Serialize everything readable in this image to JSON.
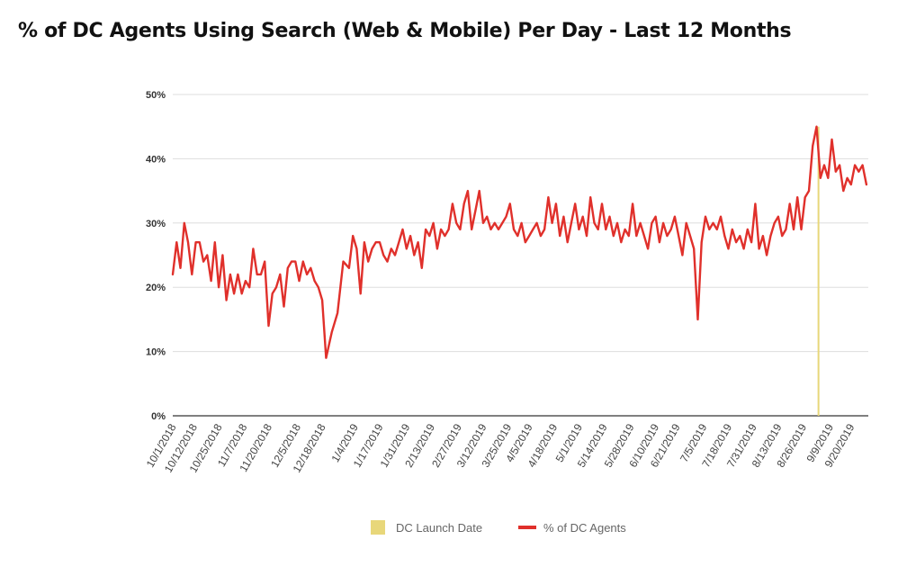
{
  "title": "% of DC Agents Using Search (Web & Mobile) Per Day - Last 12 Months",
  "colors": {
    "series": "#e0302b",
    "launch": "#e8d77a",
    "grid": "#dddddd",
    "axis": "#333333"
  },
  "chart_data": {
    "type": "line",
    "title": "% of DC Agents Using Search (Web & Mobile) Per Day - Last 12 Months",
    "xlabel": "",
    "ylabel": "",
    "x_start": "2018-10-01",
    "x_end": "2019-09-29",
    "ylim": [
      0,
      50
    ],
    "yticks": [
      0,
      10,
      20,
      30,
      40,
      50
    ],
    "ytick_labels": [
      "0%",
      "10%",
      "20%",
      "30%",
      "40%",
      "50%"
    ],
    "xtick_dates": [
      "2018-10-01",
      "2018-10-12",
      "2018-10-25",
      "2018-11-07",
      "2018-11-20",
      "2018-12-05",
      "2018-12-18",
      "2019-01-04",
      "2019-01-17",
      "2019-01-31",
      "2019-02-13",
      "2019-02-27",
      "2019-03-12",
      "2019-03-25",
      "2019-04-05",
      "2019-04-18",
      "2019-05-01",
      "2019-05-14",
      "2019-05-28",
      "2019-06-10",
      "2019-06-21",
      "2019-07-05",
      "2019-07-18",
      "2019-07-31",
      "2019-08-13",
      "2019-08-26",
      "2019-09-09",
      "2019-09-20"
    ],
    "xtick_labels": [
      "10/1/2018",
      "10/12/2018",
      "10/25/2018",
      "11/7/2018",
      "11/20/2018",
      "12/5/2018",
      "12/18/2018",
      "1/4/2019",
      "1/17/2019",
      "1/31/2019",
      "2/13/2019",
      "2/27/2019",
      "3/12/2019",
      "3/25/2019",
      "4/5/2019",
      "4/18/2019",
      "5/1/2019",
      "5/14/2019",
      "5/28/2019",
      "6/10/2019",
      "6/21/2019",
      "7/5/2019",
      "7/18/2019",
      "7/31/2019",
      "8/13/2019",
      "8/26/2019",
      "9/9/2019",
      "9/20/2019"
    ],
    "grid": true,
    "legend_position": "bottom",
    "legend": [
      "DC Launch Date",
      "% of DC Agents"
    ],
    "launch_date": "2019-09-03",
    "series": [
      {
        "name": "% of DC Agents",
        "points": [
          [
            "2018-10-01",
            22
          ],
          [
            "2018-10-03",
            27
          ],
          [
            "2018-10-05",
            23
          ],
          [
            "2018-10-07",
            30
          ],
          [
            "2018-10-09",
            27
          ],
          [
            "2018-10-11",
            22
          ],
          [
            "2018-10-13",
            27
          ],
          [
            "2018-10-15",
            27
          ],
          [
            "2018-10-17",
            24
          ],
          [
            "2018-10-19",
            25
          ],
          [
            "2018-10-21",
            21
          ],
          [
            "2018-10-23",
            27
          ],
          [
            "2018-10-25",
            20
          ],
          [
            "2018-10-27",
            25
          ],
          [
            "2018-10-29",
            18
          ],
          [
            "2018-10-31",
            22
          ],
          [
            "2018-11-02",
            19
          ],
          [
            "2018-11-04",
            22
          ],
          [
            "2018-11-06",
            19
          ],
          [
            "2018-11-08",
            21
          ],
          [
            "2018-11-10",
            20
          ],
          [
            "2018-11-12",
            26
          ],
          [
            "2018-11-14",
            22
          ],
          [
            "2018-11-16",
            22
          ],
          [
            "2018-11-18",
            24
          ],
          [
            "2018-11-20",
            14
          ],
          [
            "2018-11-22",
            19
          ],
          [
            "2018-11-24",
            20
          ],
          [
            "2018-11-26",
            22
          ],
          [
            "2018-11-28",
            17
          ],
          [
            "2018-11-30",
            23
          ],
          [
            "2018-12-02",
            24
          ],
          [
            "2018-12-04",
            24
          ],
          [
            "2018-12-06",
            21
          ],
          [
            "2018-12-08",
            24
          ],
          [
            "2018-12-10",
            22
          ],
          [
            "2018-12-12",
            23
          ],
          [
            "2018-12-14",
            21
          ],
          [
            "2018-12-16",
            20
          ],
          [
            "2018-12-18",
            18
          ],
          [
            "2018-12-20",
            9
          ],
          [
            "2018-12-23",
            13
          ],
          [
            "2018-12-26",
            16
          ],
          [
            "2018-12-29",
            24
          ],
          [
            "2019-01-01",
            23
          ],
          [
            "2019-01-03",
            28
          ],
          [
            "2019-01-05",
            26
          ],
          [
            "2019-01-07",
            19
          ],
          [
            "2019-01-09",
            27
          ],
          [
            "2019-01-11",
            24
          ],
          [
            "2019-01-13",
            26
          ],
          [
            "2019-01-15",
            27
          ],
          [
            "2019-01-17",
            27
          ],
          [
            "2019-01-19",
            25
          ],
          [
            "2019-01-21",
            24
          ],
          [
            "2019-01-23",
            26
          ],
          [
            "2019-01-25",
            25
          ],
          [
            "2019-01-27",
            27
          ],
          [
            "2019-01-29",
            29
          ],
          [
            "2019-01-31",
            26
          ],
          [
            "2019-02-02",
            28
          ],
          [
            "2019-02-04",
            25
          ],
          [
            "2019-02-06",
            27
          ],
          [
            "2019-02-08",
            23
          ],
          [
            "2019-02-10",
            29
          ],
          [
            "2019-02-12",
            28
          ],
          [
            "2019-02-14",
            30
          ],
          [
            "2019-02-16",
            26
          ],
          [
            "2019-02-18",
            29
          ],
          [
            "2019-02-20",
            28
          ],
          [
            "2019-02-22",
            29
          ],
          [
            "2019-02-24",
            33
          ],
          [
            "2019-02-26",
            30
          ],
          [
            "2019-02-28",
            29
          ],
          [
            "2019-03-02",
            33
          ],
          [
            "2019-03-04",
            35
          ],
          [
            "2019-03-06",
            29
          ],
          [
            "2019-03-08",
            32
          ],
          [
            "2019-03-10",
            35
          ],
          [
            "2019-03-12",
            30
          ],
          [
            "2019-03-14",
            31
          ],
          [
            "2019-03-16",
            29
          ],
          [
            "2019-03-18",
            30
          ],
          [
            "2019-03-20",
            29
          ],
          [
            "2019-03-22",
            30
          ],
          [
            "2019-03-24",
            31
          ],
          [
            "2019-03-26",
            33
          ],
          [
            "2019-03-28",
            29
          ],
          [
            "2019-03-30",
            28
          ],
          [
            "2019-04-01",
            30
          ],
          [
            "2019-04-03",
            27
          ],
          [
            "2019-04-05",
            28
          ],
          [
            "2019-04-07",
            29
          ],
          [
            "2019-04-09",
            30
          ],
          [
            "2019-04-11",
            28
          ],
          [
            "2019-04-13",
            29
          ],
          [
            "2019-04-15",
            34
          ],
          [
            "2019-04-17",
            30
          ],
          [
            "2019-04-19",
            33
          ],
          [
            "2019-04-21",
            28
          ],
          [
            "2019-04-23",
            31
          ],
          [
            "2019-04-25",
            27
          ],
          [
            "2019-04-27",
            30
          ],
          [
            "2019-04-29",
            33
          ],
          [
            "2019-05-01",
            29
          ],
          [
            "2019-05-03",
            31
          ],
          [
            "2019-05-05",
            28
          ],
          [
            "2019-05-07",
            34
          ],
          [
            "2019-05-09",
            30
          ],
          [
            "2019-05-11",
            29
          ],
          [
            "2019-05-13",
            33
          ],
          [
            "2019-05-15",
            29
          ],
          [
            "2019-05-17",
            31
          ],
          [
            "2019-05-19",
            28
          ],
          [
            "2019-05-21",
            30
          ],
          [
            "2019-05-23",
            27
          ],
          [
            "2019-05-25",
            29
          ],
          [
            "2019-05-27",
            28
          ],
          [
            "2019-05-29",
            33
          ],
          [
            "2019-05-31",
            28
          ],
          [
            "2019-06-02",
            30
          ],
          [
            "2019-06-04",
            28
          ],
          [
            "2019-06-06",
            26
          ],
          [
            "2019-06-08",
            30
          ],
          [
            "2019-06-10",
            31
          ],
          [
            "2019-06-12",
            27
          ],
          [
            "2019-06-14",
            30
          ],
          [
            "2019-06-16",
            28
          ],
          [
            "2019-06-18",
            29
          ],
          [
            "2019-06-20",
            31
          ],
          [
            "2019-06-22",
            28
          ],
          [
            "2019-06-24",
            25
          ],
          [
            "2019-06-26",
            30
          ],
          [
            "2019-06-28",
            28
          ],
          [
            "2019-06-30",
            26
          ],
          [
            "2019-07-02",
            15
          ],
          [
            "2019-07-04",
            27
          ],
          [
            "2019-07-06",
            31
          ],
          [
            "2019-07-08",
            29
          ],
          [
            "2019-07-10",
            30
          ],
          [
            "2019-07-12",
            29
          ],
          [
            "2019-07-14",
            31
          ],
          [
            "2019-07-16",
            28
          ],
          [
            "2019-07-18",
            26
          ],
          [
            "2019-07-20",
            29
          ],
          [
            "2019-07-22",
            27
          ],
          [
            "2019-07-24",
            28
          ],
          [
            "2019-07-26",
            26
          ],
          [
            "2019-07-28",
            29
          ],
          [
            "2019-07-30",
            27
          ],
          [
            "2019-08-01",
            33
          ],
          [
            "2019-08-03",
            26
          ],
          [
            "2019-08-05",
            28
          ],
          [
            "2019-08-07",
            25
          ],
          [
            "2019-08-09",
            28
          ],
          [
            "2019-08-11",
            30
          ],
          [
            "2019-08-13",
            31
          ],
          [
            "2019-08-15",
            28
          ],
          [
            "2019-08-17",
            29
          ],
          [
            "2019-08-19",
            33
          ],
          [
            "2019-08-21",
            29
          ],
          [
            "2019-08-23",
            34
          ],
          [
            "2019-08-25",
            29
          ],
          [
            "2019-08-27",
            34
          ],
          [
            "2019-08-29",
            35
          ],
          [
            "2019-08-31",
            42
          ],
          [
            "2019-09-02",
            45
          ],
          [
            "2019-09-04",
            37
          ],
          [
            "2019-09-06",
            39
          ],
          [
            "2019-09-08",
            37
          ],
          [
            "2019-09-10",
            43
          ],
          [
            "2019-09-12",
            38
          ],
          [
            "2019-09-14",
            39
          ],
          [
            "2019-09-16",
            35
          ],
          [
            "2019-09-18",
            37
          ],
          [
            "2019-09-20",
            36
          ],
          [
            "2019-09-22",
            39
          ],
          [
            "2019-09-24",
            38
          ],
          [
            "2019-09-26",
            39
          ],
          [
            "2019-09-28",
            36
          ]
        ]
      }
    ]
  }
}
